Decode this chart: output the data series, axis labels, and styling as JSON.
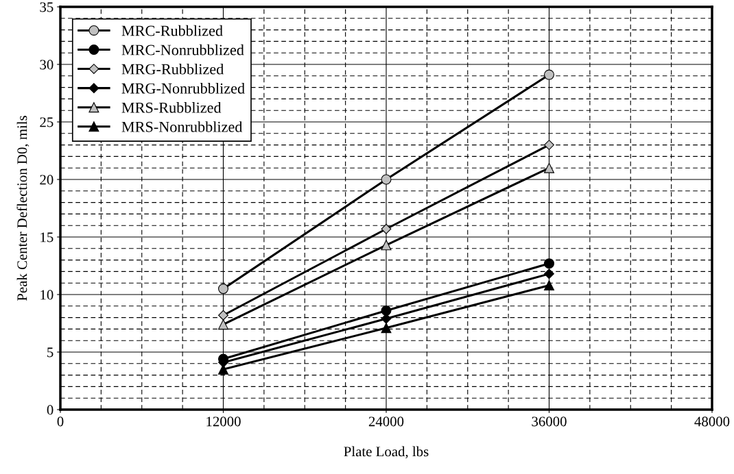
{
  "chart_data": {
    "type": "line",
    "xlabel": "Plate Load, lbs",
    "ylabel": "Peak Center Deflection D0, mils",
    "x": [
      12000,
      24000,
      36000
    ],
    "series": [
      {
        "name": "MRC-Rubblized",
        "color": "#c0c0c0",
        "marker": "circle",
        "values": [
          10.5,
          20.0,
          29.1
        ]
      },
      {
        "name": "MRC-Nonrubblized",
        "color": "#000000",
        "marker": "circle",
        "values": [
          4.4,
          8.6,
          12.7
        ]
      },
      {
        "name": "MRG-Rubblized",
        "color": "#c0c0c0",
        "marker": "diamond",
        "values": [
          8.2,
          15.7,
          23.0
        ]
      },
      {
        "name": "MRG-Nonrubblized",
        "color": "#000000",
        "marker": "diamond",
        "values": [
          4.1,
          7.9,
          11.8
        ]
      },
      {
        "name": "MRS-Rubblized",
        "color": "#c0c0c0",
        "marker": "triangle",
        "values": [
          7.4,
          14.3,
          21.0
        ]
      },
      {
        "name": "MRS-Nonrubblized",
        "color": "#000000",
        "marker": "triangle",
        "values": [
          3.5,
          7.1,
          10.8
        ]
      }
    ],
    "xlim": [
      0,
      48000
    ],
    "xticks": [
      0,
      12000,
      24000,
      36000,
      48000
    ],
    "ylim": [
      0,
      35
    ],
    "yticks": [
      0,
      5,
      10,
      15,
      20,
      25,
      30,
      35
    ],
    "grid": true,
    "legend": "top left",
    "line_style": "solid"
  }
}
